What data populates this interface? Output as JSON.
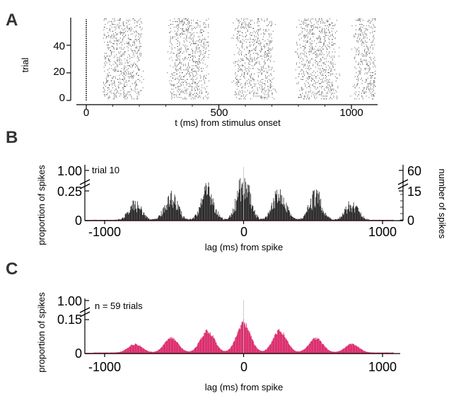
{
  "colors": {
    "raster": "#222222",
    "hist_dark": "#1a1a1a",
    "hist_pink": "#d81b60",
    "axis": "#000000"
  },
  "panels": {
    "A": "A",
    "B": "B",
    "C": "C"
  },
  "chart_data": [
    {
      "panel": "A",
      "type": "scatter",
      "subtype": "raster",
      "xlabel": "t (ms) from stimulus onset",
      "ylabel": "trial",
      "xlim": [
        -40,
        1090
      ],
      "ylim": [
        0,
        60
      ],
      "xticks": [
        0,
        500,
        1000
      ],
      "yticks": [
        0,
        20,
        40
      ],
      "n_trials": 59,
      "stimulus_onset_marker_ms": 0,
      "burst_centers_ms": [
        135,
        385,
        630,
        870,
        1085
      ],
      "burst_width_ms": 140
    },
    {
      "panel": "B",
      "type": "bar",
      "subtype": "autocorrelogram",
      "annotation": "trial 10",
      "xlabel": "lag (ms) from spike",
      "ylabel": "proportion of spikes",
      "ylabel_right": "number of spikes",
      "xlim": [
        -1080,
        1080
      ],
      "xticks": [
        -1000,
        0,
        1000
      ],
      "yticks_left": [
        "0",
        "0.25",
        "1.00"
      ],
      "yticks_right": [
        "0",
        "15",
        "60"
      ],
      "peak_lags_ms": [
        -780,
        -520,
        -260,
        0,
        260,
        520,
        780
      ],
      "peak_heights": [
        0.1,
        0.15,
        0.18,
        0.24,
        0.18,
        0.15,
        0.1
      ],
      "peak_width_ms": 45,
      "series": [
        {
          "name": "trial 10",
          "color": "#1a1a1a"
        }
      ]
    },
    {
      "panel": "C",
      "type": "area",
      "subtype": "autocorrelogram",
      "annotation": "n = 59 trials",
      "xlabel": "lag (ms) from spike",
      "ylabel": "proportion of spikes",
      "xlim": [
        -1080,
        1080
      ],
      "xticks": [
        -1000,
        0,
        1000
      ],
      "yticks_left": [
        "0",
        "0.15",
        "1.00"
      ],
      "peak_lags_ms": [
        -780,
        -520,
        -260,
        0,
        260,
        520,
        780
      ],
      "peak_heights": [
        0.035,
        0.06,
        0.09,
        0.12,
        0.09,
        0.06,
        0.035
      ],
      "peak_width_ms": 50,
      "series": [
        {
          "name": "n = 59 trials",
          "color": "#d81b60"
        }
      ]
    }
  ]
}
